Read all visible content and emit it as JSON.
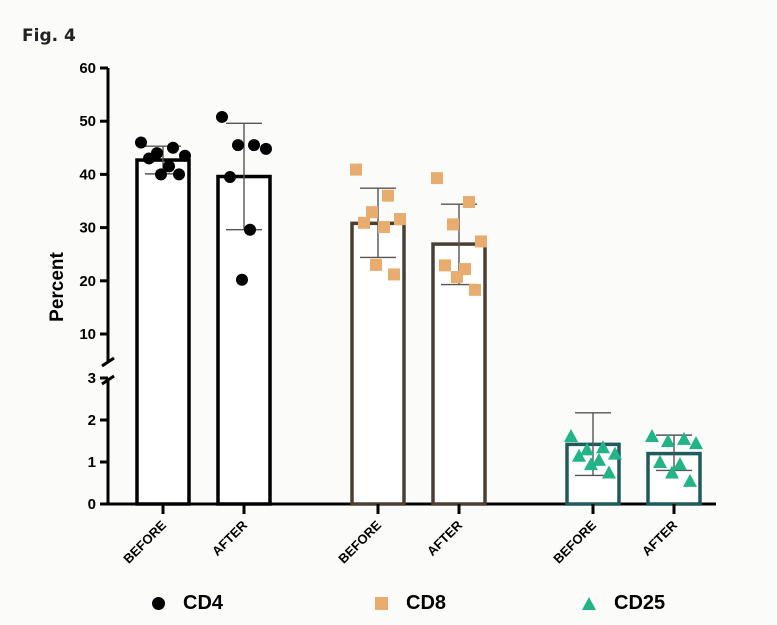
{
  "figure_label": "Fig. 4",
  "colors": {
    "cd4_bar": "#000000",
    "cd8_bar": "#4b3f33",
    "cd25_bar": "#1f5a5c",
    "cd4_marker": "#000000",
    "cd8_marker": "#e8ad6e",
    "cd25_marker": "#22b486"
  },
  "legend": [
    {
      "label": "CD4",
      "marker": "circle"
    },
    {
      "label": "CD8",
      "marker": "square"
    },
    {
      "label": "CD25",
      "marker": "triangle"
    }
  ],
  "chart_data": {
    "type": "bar",
    "ylabel": "Percent",
    "xlabel": "",
    "y_axis_break": {
      "lower_range": [
        0,
        3
      ],
      "upper_range": [
        7,
        60
      ]
    },
    "y_ticks_lower": [
      "0",
      "1",
      "2",
      "3"
    ],
    "y_ticks_upper": [
      "10",
      "20",
      "30",
      "40",
      "50",
      "60"
    ],
    "categories": [
      "BEFORE",
      "AFTER",
      "BEFORE",
      "AFTER",
      "BEFORE",
      "AFTER"
    ],
    "series": [
      {
        "name": "CD4",
        "groups": [
          {
            "label": "BEFORE",
            "mean": 42.7,
            "sd_upper": 45.3,
            "sd_lower": 40.1,
            "points": [
              46.0,
              45.0,
              44.0,
              43.5,
              43.0,
              41.5,
              40.0,
              40.0
            ]
          },
          {
            "label": "AFTER",
            "mean": 39.6,
            "sd_upper": 49.6,
            "sd_lower": 29.6,
            "points": [
              50.8,
              45.5,
              45.5,
              44.8,
              39.5,
              29.6,
              20.2
            ]
          }
        ]
      },
      {
        "name": "CD8",
        "groups": [
          {
            "label": "BEFORE",
            "mean": 30.8,
            "sd_upper": 37.4,
            "sd_lower": 24.4,
            "points": [
              40.9,
              36.0,
              32.9,
              31.6,
              30.9,
              30.1,
              23.0,
              21.2
            ]
          },
          {
            "label": "AFTER",
            "mean": 26.9,
            "sd_upper": 34.4,
            "sd_lower": 19.3,
            "points": [
              39.3,
              34.8,
              30.6,
              27.4,
              22.9,
              22.2,
              20.7,
              18.3
            ]
          }
        ]
      },
      {
        "name": "CD25",
        "groups": [
          {
            "label": "BEFORE",
            "mean": 1.42,
            "sd_upper": 2.17,
            "sd_lower": 0.68,
            "points": [
              1.62,
              1.35,
              1.3,
              1.2,
              1.15,
              1.05,
              0.95,
              0.75
            ]
          },
          {
            "label": "AFTER",
            "mean": 1.2,
            "sd_upper": 1.64,
            "sd_lower": 0.8,
            "points": [
              1.62,
              1.55,
              1.5,
              1.45,
              1.0,
              0.95,
              0.75,
              0.55
            ]
          }
        ]
      }
    ]
  }
}
